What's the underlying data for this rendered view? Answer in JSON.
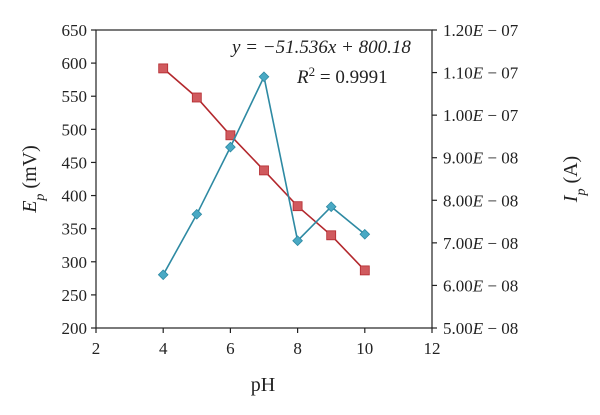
{
  "chart_data": {
    "type": "line",
    "x_axis": {
      "label": "pH",
      "range": [
        2,
        12
      ],
      "ticks": [
        2,
        4,
        6,
        8,
        10,
        12
      ],
      "tick_labels": [
        "2",
        "4",
        "6",
        "8",
        "10",
        "12"
      ]
    },
    "y_left": {
      "label": "E_p (mV)",
      "range": [
        200,
        650
      ],
      "ticks": [
        200,
        250,
        300,
        350,
        400,
        450,
        500,
        550,
        600,
        650
      ],
      "tick_labels": [
        "200",
        "250",
        "300",
        "350",
        "400",
        "450",
        "500",
        "550",
        "600",
        "650"
      ]
    },
    "y_right": {
      "label": "I_p (A)",
      "range": [
        5e-08,
        1.2e-07
      ],
      "ticks": [
        5e-08,
        6e-08,
        7e-08,
        8e-08,
        9e-08,
        1e-07,
        1.1e-07,
        1.2e-07
      ],
      "tick_labels": [
        "5.00E − 08",
        "6.00E − 08",
        "7.00E − 08",
        "8.00E − 08",
        "9.00E − 08",
        "1.00E − 07",
        "1.10E − 07",
        "1.20E − 07"
      ]
    },
    "series": [
      {
        "axis": "left",
        "marker": "square",
        "color": "#b3282d",
        "marker_fill": "#d05a5e",
        "x": [
          4,
          5,
          6,
          7,
          8,
          9,
          10
        ],
        "values": [
          592,
          548,
          491,
          438,
          384,
          340,
          287
        ]
      },
      {
        "axis": "right",
        "marker": "diamond",
        "color": "#2e8aa3",
        "marker_fill": "#49a9c4",
        "x": [
          4,
          5,
          6,
          7,
          8,
          9,
          10
        ],
        "values": [
          6.25e-08,
          7.67e-08,
          9.25e-08,
          1.09e-07,
          7.05e-08,
          7.85e-08,
          7.2e-08
        ]
      }
    ],
    "annotations": {
      "equation": "y = −51.536x + 800.18",
      "r_squared_label": "R",
      "r_squared_exponent": "2",
      "r_squared_value": " = 0.9991"
    },
    "grid": false,
    "legend": "none"
  }
}
